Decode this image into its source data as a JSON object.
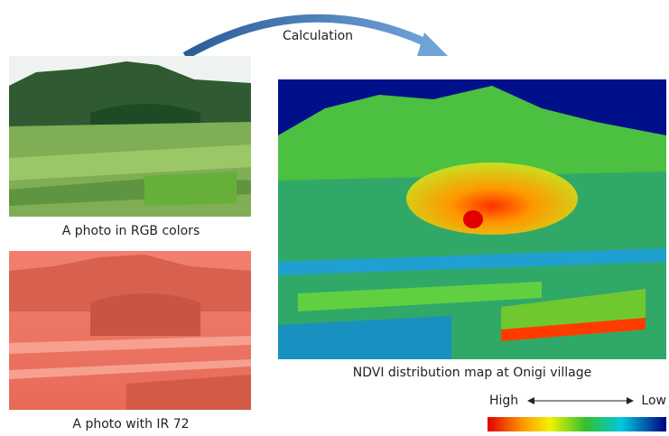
{
  "arrow_label": "Calculation",
  "panels": [
    {
      "caption": "A photo in RGB colors"
    },
    {
      "caption": "A photo with IR 72"
    },
    {
      "caption": "NDVI distribution map at Onigi village"
    }
  ],
  "legend": {
    "high": "High",
    "low": "Low"
  }
}
